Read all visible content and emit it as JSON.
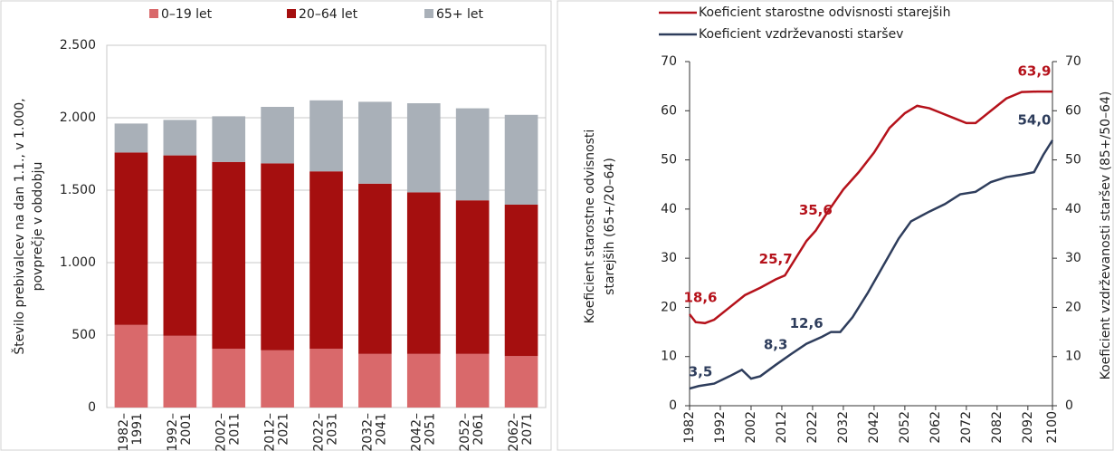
{
  "chart_data": [
    {
      "type": "bar",
      "stacked": true,
      "ylabel": [
        "Število prebivalcev na dan 1.1., v 1.000,",
        "povprečje v obdobju"
      ],
      "categories": [
        [
          "1982–",
          "1991"
        ],
        [
          "1992–",
          "2001"
        ],
        [
          "2002–",
          "2011"
        ],
        [
          "2012–",
          "2021"
        ],
        [
          "2022–",
          "2031"
        ],
        [
          "2032–",
          "2041"
        ],
        [
          "2042–",
          "2051"
        ],
        [
          "2052–",
          "2061"
        ],
        [
          "2062–",
          "2071"
        ]
      ],
      "series": [
        {
          "name": "0–19 let",
          "color": "#d9696b",
          "values": [
            570,
            495,
            405,
            395,
            405,
            370,
            370,
            370,
            355
          ]
        },
        {
          "name": "20–64 let",
          "color": "#a50f0f",
          "values": [
            1190,
            1245,
            1290,
            1290,
            1225,
            1175,
            1115,
            1060,
            1045
          ]
        },
        {
          "name": "65+ let",
          "color": "#a9b0b8",
          "values": [
            200,
            245,
            315,
            390,
            490,
            565,
            615,
            635,
            620
          ]
        }
      ],
      "ylim": [
        0,
        2500
      ],
      "yticks": [
        0,
        500,
        {
          "value": 1000,
          "label": "1.000"
        },
        {
          "value": 1500,
          "label": "1.500"
        },
        {
          "value": 2000,
          "label": "2.000"
        },
        {
          "value": 2500,
          "label": "2.500"
        }
      ],
      "grid": true,
      "legend": "top"
    },
    {
      "type": "line",
      "ylabel": [
        "Koeficient starostne odvisnosti",
        "starejših (65+/20–64)"
      ],
      "y2label": "Koeficient vzdrževanosti staršev (85+/50–64)",
      "xlim": [
        1982,
        2100
      ],
      "xticks": [
        1982,
        1992,
        2002,
        2012,
        2022,
        2032,
        2042,
        2052,
        2062,
        2072,
        2082,
        2092,
        2100
      ],
      "ylim": [
        0,
        70
      ],
      "yticks": [
        0,
        10,
        20,
        30,
        40,
        50,
        60,
        70
      ],
      "y2lim": [
        0,
        70
      ],
      "y2ticks": [
        0,
        10,
        20,
        30,
        40,
        50,
        60,
        70
      ],
      "series": [
        {
          "name": "Koeficient starostne odvisnosti starejših",
          "color": "#b5121b",
          "x": [
            1982,
            1984,
            1987,
            1990,
            1995,
            2000,
            2005,
            2010,
            2013,
            2016,
            2020,
            2023,
            2027,
            2032,
            2037,
            2042,
            2047,
            2052,
            2056,
            2060,
            2064,
            2068,
            2072,
            2075,
            2080,
            2085,
            2090,
            2095,
            2100
          ],
          "values": [
            18.6,
            17,
            16.8,
            17.5,
            20,
            22.5,
            24,
            25.7,
            26.5,
            29.5,
            33.5,
            35.6,
            39.5,
            44,
            47.5,
            51.5,
            56.5,
            59.5,
            61,
            60.5,
            59.5,
            58.5,
            57.5,
            57.5,
            60,
            62.5,
            63.8,
            63.9,
            63.9
          ]
        },
        {
          "name": "Koeficient vzdrževanosti staršev",
          "color": "#2e3d5c",
          "axis": "y2",
          "x": [
            1982,
            1985,
            1990,
            1995,
            1999,
            2002,
            2005,
            2010,
            2015,
            2020,
            2025,
            2028,
            2031,
            2035,
            2040,
            2045,
            2050,
            2054,
            2060,
            2065,
            2070,
            2075,
            2080,
            2085,
            2090,
            2094,
            2097,
            2100
          ],
          "values": [
            3.5,
            4,
            4.5,
            6,
            7.3,
            5.5,
            6,
            8.3,
            10.5,
            12.6,
            14,
            15,
            15,
            18,
            23,
            28.5,
            34,
            37.5,
            39.5,
            41,
            43,
            43.5,
            45.5,
            46.5,
            47,
            47.5,
            51,
            54
          ]
        }
      ],
      "annotations": [
        {
          "series": 0,
          "x": 1982,
          "value": 18.6,
          "label": "18,6"
        },
        {
          "series": 0,
          "x": 2010,
          "value": 25.7,
          "label": "25,7"
        },
        {
          "series": 0,
          "x": 2023,
          "value": 35.6,
          "label": "35,6"
        },
        {
          "series": 0,
          "x": 2100,
          "value": 63.9,
          "label": "63,9"
        },
        {
          "series": 1,
          "x": 1982,
          "value": 3.5,
          "label": "3,5"
        },
        {
          "series": 1,
          "x": 2010,
          "value": 8.3,
          "label": "8,3"
        },
        {
          "series": 1,
          "x": 2020,
          "value": 12.6,
          "label": "12,6"
        },
        {
          "series": 1,
          "x": 2100,
          "value": 54.0,
          "label": "54,0"
        }
      ]
    }
  ]
}
